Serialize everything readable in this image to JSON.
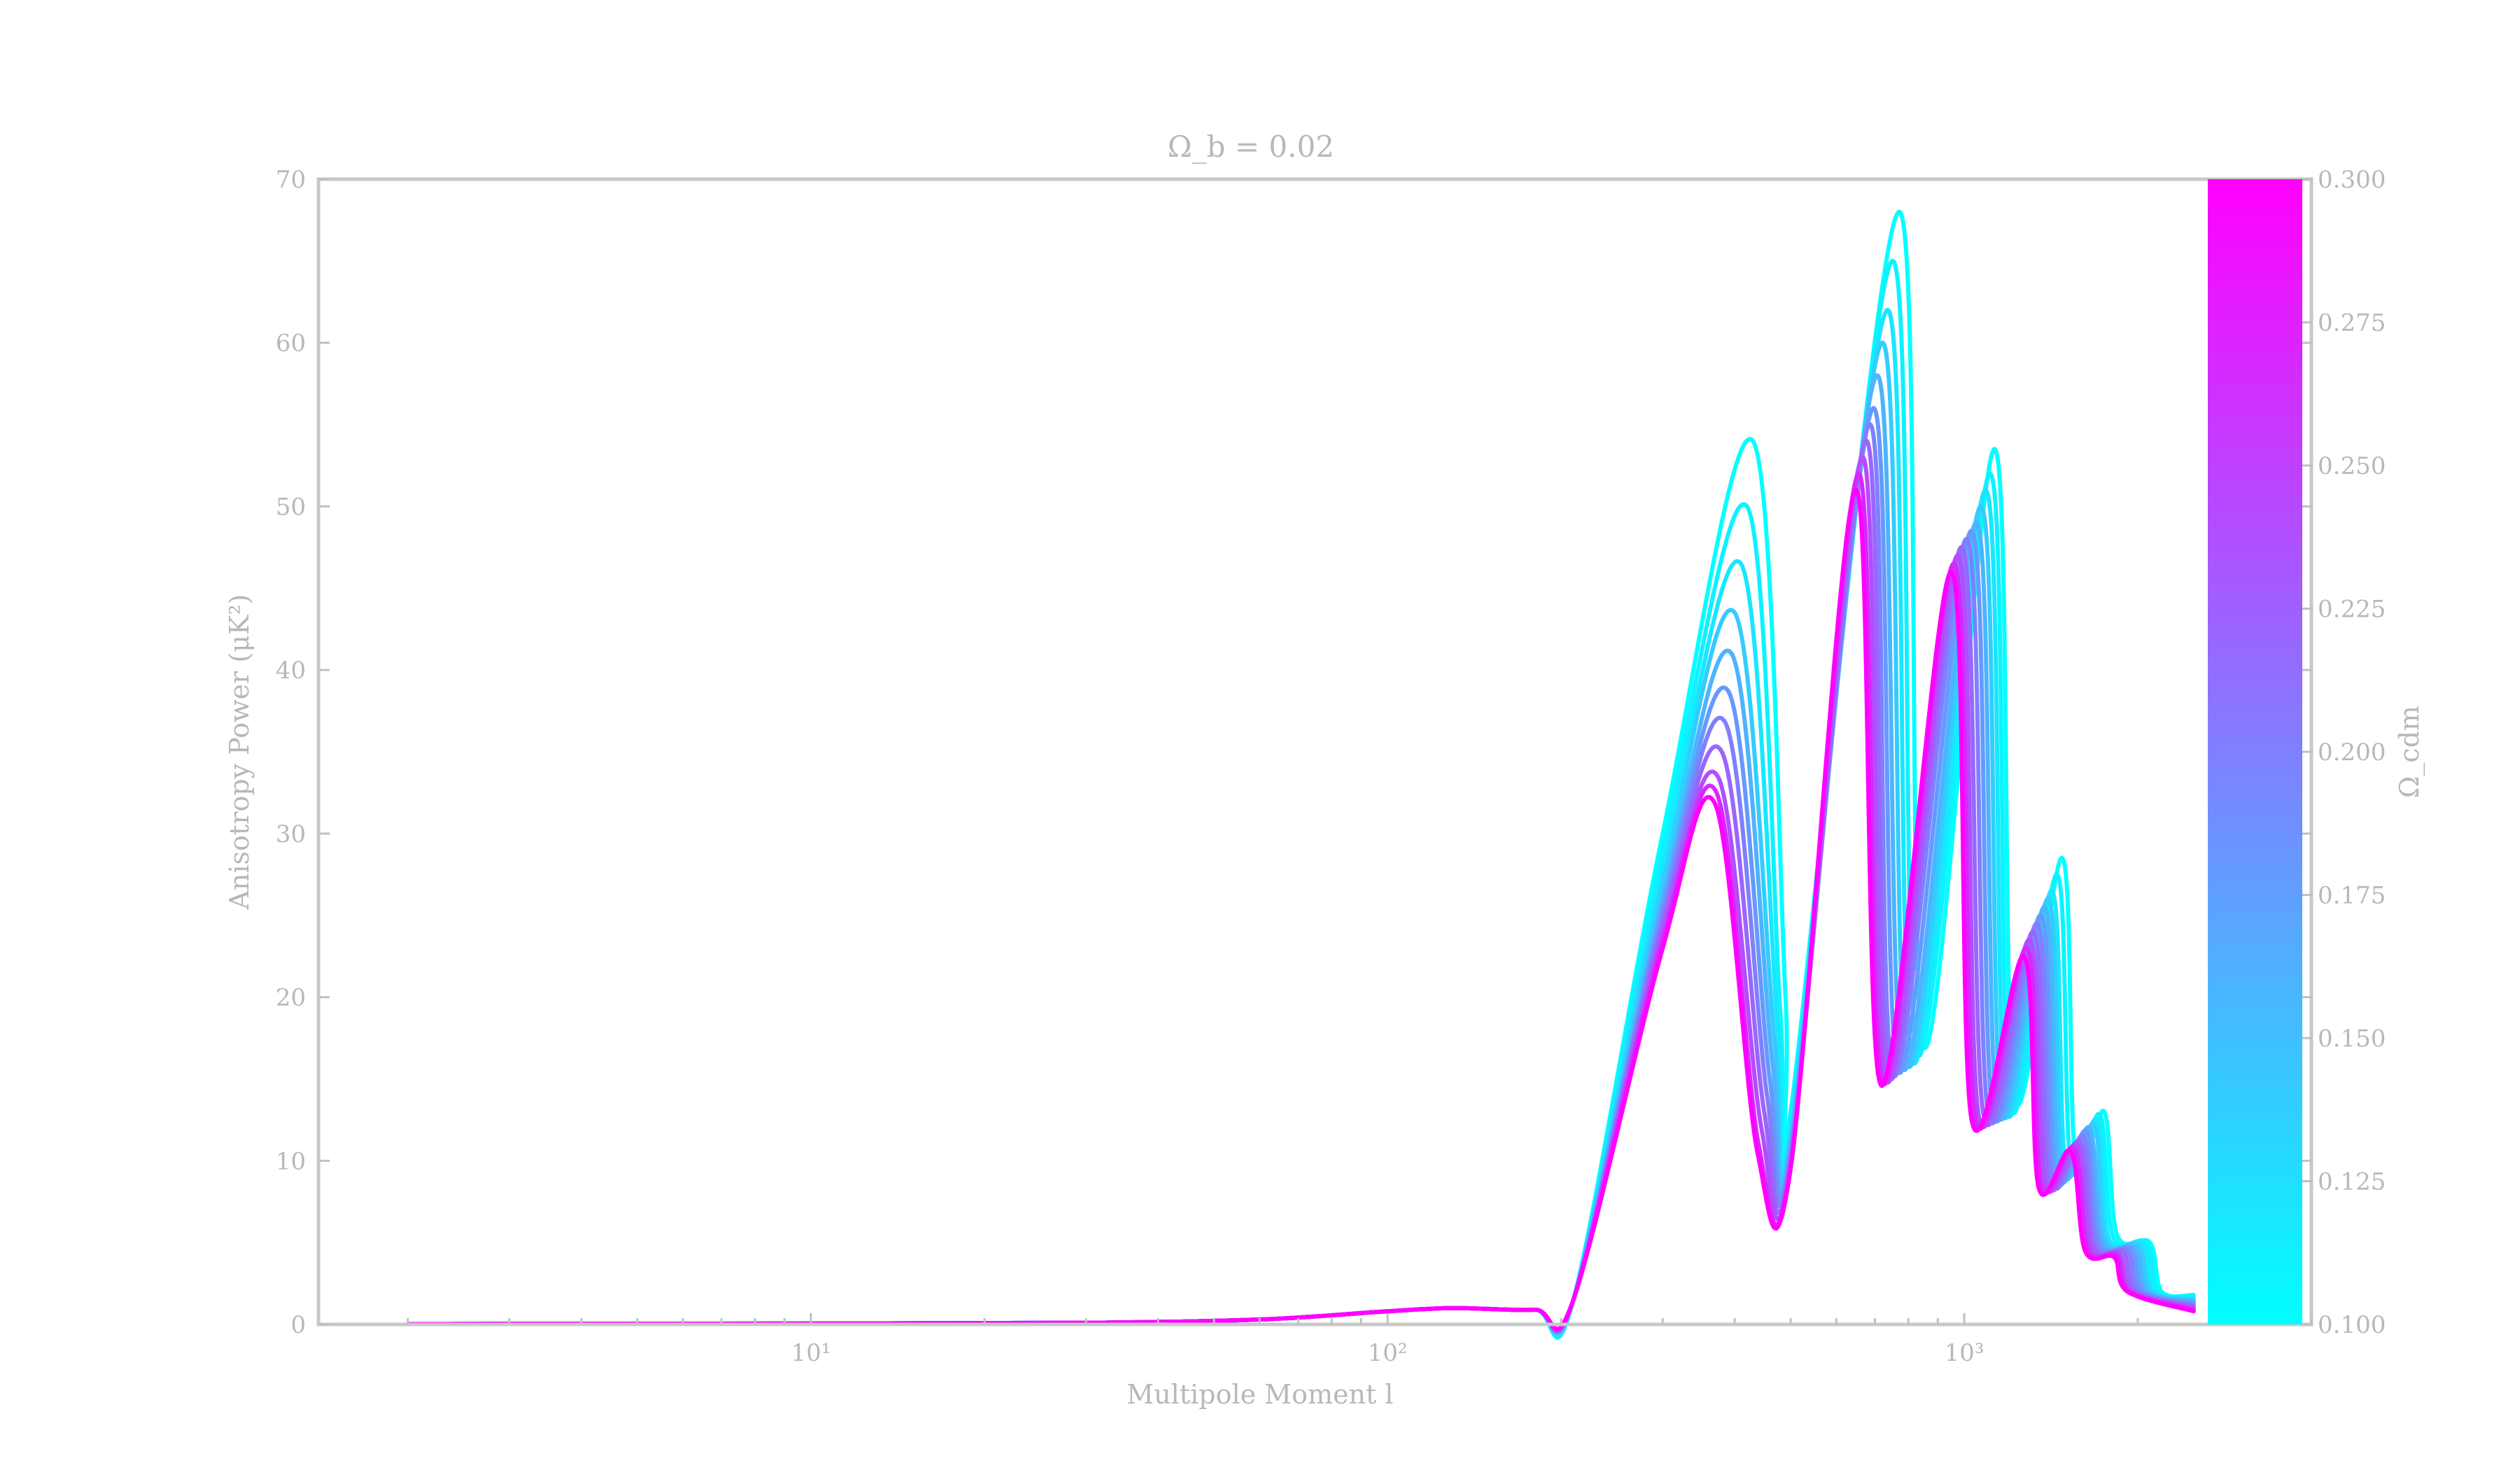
{
  "chart_data": {
    "type": "line",
    "title": "Ω_b = 0.02",
    "xlabel": "Multipole Moment l",
    "ylabel": "Anisotropy Power (μK²)",
    "xscale": "log",
    "xlim": [
      1.4,
      4000
    ],
    "ylim": [
      0,
      70
    ],
    "x_ticks": [
      10,
      100,
      1000
    ],
    "x_tick_labels": [
      "10¹",
      "10²",
      "10³"
    ],
    "y_ticks": [
      0,
      10,
      20,
      30,
      40,
      50,
      60,
      70
    ],
    "y_tick_labels": [
      "0",
      "10",
      "20",
      "30",
      "40",
      "50",
      "60",
      "70"
    ],
    "grid": false,
    "colorbar": {
      "label": "Ω_cdm",
      "range": [
        0.1,
        0.3
      ],
      "ticks": [
        0.1,
        0.125,
        0.15,
        0.175,
        0.2,
        0.225,
        0.25,
        0.275,
        0.3
      ],
      "tick_labels": [
        "0.100",
        "0.125",
        "0.150",
        "0.175",
        "0.200",
        "0.225",
        "0.250",
        "0.275",
        "0.300"
      ],
      "colors": {
        "low": "#00ffff",
        "high": "#ff00ff"
      },
      "position": "right"
    },
    "series": [
      {
        "omega_cdm": 0.1,
        "x": [
          2,
          10,
          30,
          60,
          100,
          130,
          180,
          210,
          300,
          430,
          490,
          500,
          770,
          850,
          1130,
          1220,
          1480,
          1560,
          1750,
          1840,
          2100,
          2200,
          2500
        ],
        "y": [
          0.02,
          0.05,
          0.1,
          0.3,
          0.8,
          1.0,
          0.9,
          1.5,
          30,
          54,
          20,
          13,
          68,
          17,
          53.5,
          14,
          28.5,
          10,
          13,
          5.5,
          5,
          2,
          1.8
        ]
      },
      {
        "omega_cdm": 0.11,
        "x": [
          2,
          10,
          30,
          60,
          100,
          130,
          180,
          210,
          300,
          420,
          480,
          500,
          750,
          830,
          1110,
          1200,
          1450,
          1530,
          1720,
          1810,
          2070,
          2170,
          2500
        ],
        "y": [
          0.02,
          0.05,
          0.1,
          0.3,
          0.8,
          1.0,
          0.9,
          1.5,
          29,
          50,
          19,
          12.5,
          65,
          16.5,
          52,
          13.5,
          27.5,
          9.8,
          12.8,
          5.4,
          5,
          2,
          1.7
        ]
      },
      {
        "omega_cdm": 0.12,
        "x": [
          2,
          10,
          30,
          60,
          100,
          130,
          180,
          210,
          300,
          410,
          475,
          500,
          735,
          815,
          1090,
          1180,
          1420,
          1500,
          1700,
          1780,
          2040,
          2140,
          2500
        ],
        "y": [
          0.02,
          0.05,
          0.1,
          0.3,
          0.8,
          1.0,
          0.9,
          1.5,
          28,
          46.5,
          18,
          12,
          62,
          16,
          51,
          13.3,
          26.5,
          9.6,
          12.5,
          5.3,
          4.9,
          2,
          1.6
        ]
      },
      {
        "omega_cdm": 0.14,
        "x": [
          2,
          10,
          30,
          60,
          100,
          130,
          180,
          210,
          300,
          400,
          470,
          500,
          720,
          800,
          1070,
          1160,
          1400,
          1480,
          1680,
          1760,
          2010,
          2110,
          2500
        ],
        "y": [
          0.02,
          0.05,
          0.1,
          0.3,
          0.8,
          1.0,
          0.9,
          1.5,
          27,
          43.5,
          17,
          11.5,
          60,
          15.8,
          50,
          13.2,
          26,
          9.4,
          12.2,
          5.2,
          4.8,
          2,
          1.5
        ]
      },
      {
        "omega_cdm": 0.16,
        "x": [
          2,
          10,
          30,
          60,
          100,
          130,
          180,
          210,
          300,
          395,
          465,
          500,
          705,
          785,
          1050,
          1140,
          1380,
          1460,
          1650,
          1740,
          1980,
          2080,
          2500
        ],
        "y": [
          0.02,
          0.05,
          0.1,
          0.3,
          0.8,
          1.0,
          0.9,
          1.5,
          26,
          41,
          16,
          11,
          58,
          15.6,
          49,
          13.1,
          25.5,
          9.2,
          12,
          5.1,
          4.7,
          2,
          1.4
        ]
      },
      {
        "omega_cdm": 0.18,
        "x": [
          2,
          10,
          30,
          60,
          100,
          130,
          180,
          210,
          300,
          390,
          460,
          500,
          695,
          770,
          1030,
          1120,
          1360,
          1440,
          1630,
          1720,
          1950,
          2050,
          2500
        ],
        "y": [
          0.02,
          0.05,
          0.1,
          0.3,
          0.8,
          1.0,
          0.9,
          1.5,
          25.5,
          38.7,
          15,
          10.6,
          56,
          15.4,
          48.5,
          13,
          25,
          9,
          11.8,
          5,
          4.6,
          2,
          1.3
        ]
      },
      {
        "omega_cdm": 0.2,
        "x": [
          2,
          10,
          30,
          60,
          100,
          130,
          180,
          210,
          300,
          385,
          455,
          500,
          685,
          755,
          1010,
          1100,
          1340,
          1420,
          1610,
          1700,
          1920,
          2020,
          2500
        ],
        "y": [
          0.02,
          0.05,
          0.1,
          0.3,
          0.8,
          1.0,
          0.9,
          1.5,
          25,
          36.8,
          14,
          10.3,
          55,
          15.2,
          48,
          12.9,
          24.5,
          8.8,
          11.5,
          4.9,
          4.5,
          2,
          1.2
        ]
      },
      {
        "omega_cdm": 0.22,
        "x": [
          2,
          10,
          30,
          60,
          100,
          130,
          180,
          210,
          300,
          380,
          450,
          500,
          675,
          745,
          990,
          1080,
          1320,
          1400,
          1590,
          1680,
          1890,
          1990,
          2500
        ],
        "y": [
          0.02,
          0.05,
          0.1,
          0.3,
          0.8,
          1.0,
          0.9,
          1.5,
          24.5,
          35,
          13,
          10,
          54,
          15,
          47.5,
          12.8,
          24,
          8.7,
          11.2,
          4.8,
          4.4,
          2,
          1.1
        ]
      },
      {
        "omega_cdm": 0.24,
        "x": [
          2,
          10,
          30,
          60,
          100,
          130,
          180,
          210,
          300,
          375,
          445,
          500,
          665,
          735,
          975,
          1060,
          1300,
          1380,
          1570,
          1660,
          1860,
          1960,
          2500
        ],
        "y": [
          0.02,
          0.05,
          0.1,
          0.3,
          0.8,
          1.0,
          0.9,
          1.5,
          24,
          33.4,
          12,
          9.8,
          53,
          14.8,
          47,
          12.7,
          23.5,
          8.6,
          11,
          4.7,
          4.3,
          2,
          1.0
        ]
      },
      {
        "omega_cdm": 0.27,
        "x": [
          2,
          10,
          30,
          60,
          100,
          130,
          180,
          210,
          300,
          372,
          440,
          500,
          655,
          725,
          960,
          1045,
          1285,
          1360,
          1550,
          1640,
          1840,
          1940,
          2500
        ],
        "y": [
          0.02,
          0.05,
          0.1,
          0.3,
          0.8,
          1.0,
          0.9,
          1.5,
          23.5,
          32.5,
          11,
          9.7,
          52,
          14.7,
          46.5,
          12.6,
          23,
          8.5,
          10.8,
          4.6,
          4.2,
          2,
          0.9
        ]
      },
      {
        "omega_cdm": 0.3,
        "x": [
          2,
          10,
          30,
          60,
          100,
          130,
          180,
          210,
          300,
          370,
          438,
          500,
          648,
          718,
          950,
          1030,
          1270,
          1345,
          1530,
          1620,
          1820,
          1920,
          2500
        ],
        "y": [
          0.02,
          0.05,
          0.1,
          0.3,
          0.8,
          1.0,
          0.9,
          1.5,
          23,
          31.8,
          10.5,
          9.5,
          51,
          14.6,
          46,
          12.5,
          22.5,
          8.4,
          10.6,
          4.5,
          4.1,
          2,
          0.8
        ]
      }
    ]
  }
}
